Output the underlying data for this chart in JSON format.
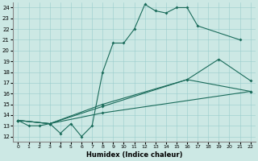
{
  "xlabel": "Humidex (Indice chaleur)",
  "bg_color": "#cce8e4",
  "line_color": "#1a6b5a",
  "grid_color": "#99cccc",
  "xlim": [
    -0.5,
    22.5
  ],
  "ylim": [
    11.5,
    24.5
  ],
  "xticks": [
    0,
    1,
    2,
    3,
    4,
    5,
    6,
    7,
    8,
    9,
    10,
    11,
    12,
    13,
    14,
    15,
    16,
    17,
    18,
    19,
    20,
    21,
    22
  ],
  "yticks": [
    12,
    13,
    14,
    15,
    16,
    17,
    18,
    19,
    20,
    21,
    22,
    23,
    24
  ],
  "lines": [
    {
      "x": [
        0,
        1,
        2,
        3,
        4,
        5,
        6,
        7,
        8,
        9,
        10,
        11,
        12,
        13,
        14,
        15,
        16,
        17,
        21
      ],
      "y": [
        13.5,
        13.0,
        13.0,
        13.2,
        12.3,
        13.2,
        12.0,
        13.0,
        18.0,
        20.7,
        20.7,
        22.0,
        24.3,
        23.7,
        23.5,
        24.0,
        24.0,
        22.3,
        21.0
      ]
    },
    {
      "x": [
        0,
        3,
        8,
        16,
        19,
        22
      ],
      "y": [
        13.5,
        13.2,
        15.0,
        17.3,
        19.2,
        17.2
      ]
    },
    {
      "x": [
        0,
        3,
        8,
        22
      ],
      "y": [
        13.5,
        13.2,
        14.2,
        16.2
      ]
    },
    {
      "x": [
        0,
        3,
        8,
        16,
        22
      ],
      "y": [
        13.5,
        13.2,
        14.8,
        17.3,
        16.2
      ]
    }
  ]
}
